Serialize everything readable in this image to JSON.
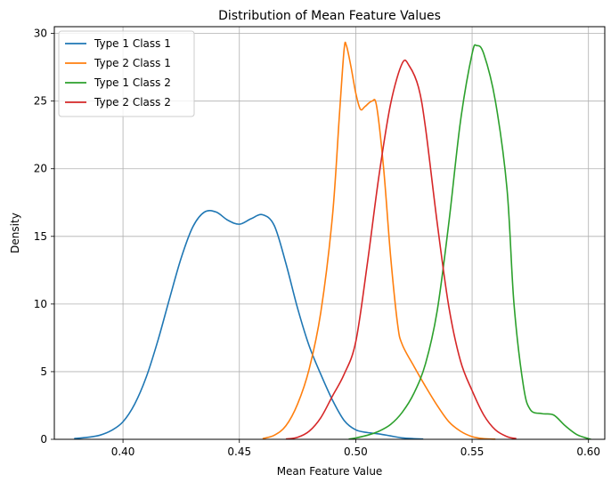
{
  "chart_data": {
    "type": "line",
    "title": "Distribution of Mean Feature Values",
    "xlabel": "Mean Feature Value",
    "ylabel": "Density",
    "xlim": [
      0.3705,
      0.607
    ],
    "ylim": [
      0,
      30.5
    ],
    "xticks": [
      {
        "value": 0.4,
        "label": "0.40"
      },
      {
        "value": 0.45,
        "label": "0.45"
      },
      {
        "value": 0.5,
        "label": "0.50"
      },
      {
        "value": 0.55,
        "label": "0.55"
      },
      {
        "value": 0.6,
        "label": "0.60"
      }
    ],
    "yticks": [
      {
        "value": 0,
        "label": "0"
      },
      {
        "value": 5,
        "label": "5"
      },
      {
        "value": 10,
        "label": "10"
      },
      {
        "value": 15,
        "label": "15"
      },
      {
        "value": 20,
        "label": "20"
      },
      {
        "value": 25,
        "label": "25"
      },
      {
        "value": 30,
        "label": "30"
      }
    ],
    "grid": true,
    "legend_position": "top-left",
    "series": [
      {
        "name": "Type 1 Class 1",
        "color": "#1f77b4",
        "points": [
          [
            0.379,
            0.05
          ],
          [
            0.385,
            0.15
          ],
          [
            0.39,
            0.3
          ],
          [
            0.395,
            0.65
          ],
          [
            0.4,
            1.3
          ],
          [
            0.405,
            2.6
          ],
          [
            0.41,
            4.6
          ],
          [
            0.415,
            7.3
          ],
          [
            0.42,
            10.4
          ],
          [
            0.425,
            13.4
          ],
          [
            0.43,
            15.7
          ],
          [
            0.435,
            16.8
          ],
          [
            0.44,
            16.8
          ],
          [
            0.445,
            16.2
          ],
          [
            0.45,
            15.9
          ],
          [
            0.455,
            16.3
          ],
          [
            0.46,
            16.6
          ],
          [
            0.465,
            15.8
          ],
          [
            0.47,
            13.0
          ],
          [
            0.475,
            9.7
          ],
          [
            0.48,
            6.9
          ],
          [
            0.485,
            4.8
          ],
          [
            0.49,
            2.9
          ],
          [
            0.495,
            1.4
          ],
          [
            0.5,
            0.7
          ],
          [
            0.505,
            0.5
          ],
          [
            0.51,
            0.4
          ],
          [
            0.515,
            0.25
          ],
          [
            0.52,
            0.1
          ],
          [
            0.525,
            0.05
          ],
          [
            0.529,
            0.02
          ]
        ]
      },
      {
        "name": "Type 2 Class 1",
        "color": "#ff7f0e",
        "points": [
          [
            0.46,
            0.05
          ],
          [
            0.465,
            0.3
          ],
          [
            0.47,
            1.0
          ],
          [
            0.475,
            2.6
          ],
          [
            0.48,
            5.2
          ],
          [
            0.485,
            9.4
          ],
          [
            0.49,
            16.5
          ],
          [
            0.493,
            24.0
          ],
          [
            0.495,
            28.8
          ],
          [
            0.496,
            29.1
          ],
          [
            0.498,
            27.5
          ],
          [
            0.5,
            25.6
          ],
          [
            0.502,
            24.4
          ],
          [
            0.504,
            24.6
          ],
          [
            0.507,
            25.0
          ],
          [
            0.509,
            24.6
          ],
          [
            0.512,
            20.0
          ],
          [
            0.515,
            13.5
          ],
          [
            0.518,
            8.5
          ],
          [
            0.52,
            7.0
          ],
          [
            0.525,
            5.4
          ],
          [
            0.53,
            3.9
          ],
          [
            0.535,
            2.5
          ],
          [
            0.54,
            1.3
          ],
          [
            0.545,
            0.6
          ],
          [
            0.55,
            0.2
          ],
          [
            0.555,
            0.05
          ],
          [
            0.56,
            0.01
          ]
        ]
      },
      {
        "name": "Type 1 Class 2",
        "color": "#2ca02c",
        "points": [
          [
            0.497,
            0.02
          ],
          [
            0.5,
            0.1
          ],
          [
            0.505,
            0.3
          ],
          [
            0.51,
            0.6
          ],
          [
            0.515,
            1.1
          ],
          [
            0.52,
            2.0
          ],
          [
            0.525,
            3.4
          ],
          [
            0.53,
            5.6
          ],
          [
            0.535,
            9.5
          ],
          [
            0.54,
            16.0
          ],
          [
            0.545,
            23.5
          ],
          [
            0.55,
            28.5
          ],
          [
            0.552,
            29.1
          ],
          [
            0.555,
            28.5
          ],
          [
            0.56,
            25.0
          ],
          [
            0.565,
            18.5
          ],
          [
            0.568,
            10.0
          ],
          [
            0.572,
            4.0
          ],
          [
            0.575,
            2.2
          ],
          [
            0.58,
            1.9
          ],
          [
            0.585,
            1.8
          ],
          [
            0.59,
            1.0
          ],
          [
            0.595,
            0.35
          ],
          [
            0.6,
            0.05
          ],
          [
            0.601,
            0.02
          ]
        ]
      },
      {
        "name": "Type 2 Class 2",
        "color": "#d62728",
        "points": [
          [
            0.47,
            0.02
          ],
          [
            0.475,
            0.15
          ],
          [
            0.48,
            0.6
          ],
          [
            0.485,
            1.6
          ],
          [
            0.49,
            3.2
          ],
          [
            0.495,
            4.8
          ],
          [
            0.5,
            7.2
          ],
          [
            0.505,
            13.0
          ],
          [
            0.51,
            19.5
          ],
          [
            0.515,
            24.8
          ],
          [
            0.52,
            27.8
          ],
          [
            0.523,
            27.6
          ],
          [
            0.527,
            26.0
          ],
          [
            0.53,
            23.0
          ],
          [
            0.535,
            16.0
          ],
          [
            0.54,
            9.8
          ],
          [
            0.545,
            5.8
          ],
          [
            0.55,
            3.6
          ],
          [
            0.555,
            1.8
          ],
          [
            0.56,
            0.7
          ],
          [
            0.565,
            0.2
          ],
          [
            0.569,
            0.05
          ]
        ]
      }
    ]
  }
}
